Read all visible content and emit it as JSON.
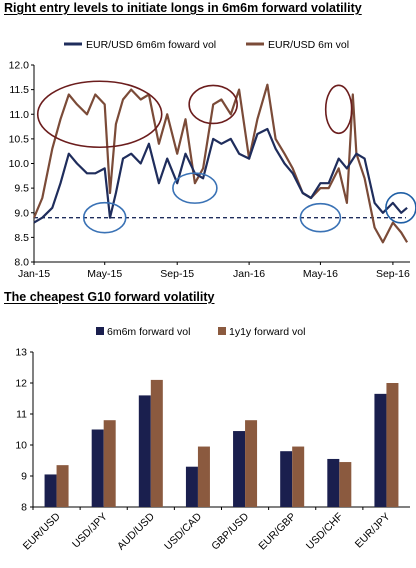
{
  "chart_data": [
    {
      "type": "line",
      "title": "Right entry levels to initiate longs in 6m6m forward volatility",
      "x_tick_labels": [
        "Jan-15",
        "May-15",
        "Sep-15",
        "Jan-16",
        "May-16",
        "Sep-16"
      ],
      "y_tick_labels": [
        "8.0",
        "8.5",
        "9.0",
        "9.5",
        "10.0",
        "10.5",
        "11.0",
        "11.5",
        "12.0"
      ],
      "ylim": [
        8.0,
        12.0
      ],
      "xlim": [
        "2015-01-01",
        "2016-09-30"
      ],
      "grid": false,
      "legend_position": "top",
      "reference_line": {
        "value": 8.9,
        "style": "dashed",
        "color": "#1f2d5c"
      },
      "series": [
        {
          "name": "EUR/USD 6m6m foward vol",
          "color": "#1f2d5c",
          "x": [
            "2015-01-01",
            "2015-01-15",
            "2015-02-01",
            "2015-02-15",
            "2015-03-01",
            "2015-03-15",
            "2015-04-01",
            "2015-04-15",
            "2015-05-01",
            "2015-05-10",
            "2015-05-20",
            "2015-06-01",
            "2015-06-15",
            "2015-07-01",
            "2015-07-15",
            "2015-08-01",
            "2015-08-15",
            "2015-09-01",
            "2015-09-15",
            "2015-10-01",
            "2015-10-15",
            "2015-11-01",
            "2015-11-15",
            "2015-12-01",
            "2015-12-15",
            "2016-01-01",
            "2016-01-15",
            "2016-02-01",
            "2016-02-15",
            "2016-03-01",
            "2016-03-15",
            "2016-04-01",
            "2016-04-15",
            "2016-05-01",
            "2016-05-15",
            "2016-06-01",
            "2016-06-15",
            "2016-07-01",
            "2016-07-15",
            "2016-08-01",
            "2016-08-15",
            "2016-09-01",
            "2016-09-15",
            "2016-09-25"
          ],
          "values": [
            8.8,
            8.9,
            9.1,
            9.6,
            10.2,
            10.0,
            9.8,
            9.8,
            9.9,
            8.9,
            9.4,
            10.1,
            10.2,
            10.0,
            10.4,
            9.6,
            10.1,
            9.6,
            10.2,
            9.8,
            9.7,
            10.5,
            10.4,
            10.5,
            10.2,
            10.1,
            10.6,
            10.7,
            10.3,
            10.0,
            9.8,
            9.4,
            9.3,
            9.6,
            9.6,
            10.1,
            9.9,
            10.2,
            10.1,
            9.2,
            9.0,
            9.2,
            9.0,
            9.1
          ]
        },
        {
          "name": "EUR/USD 6m vol",
          "color": "#7b4b38",
          "x": [
            "2015-01-01",
            "2015-01-15",
            "2015-02-01",
            "2015-02-15",
            "2015-03-01",
            "2015-03-15",
            "2015-04-01",
            "2015-04-15",
            "2015-05-01",
            "2015-05-10",
            "2015-05-20",
            "2015-06-01",
            "2015-06-15",
            "2015-07-01",
            "2015-07-15",
            "2015-08-01",
            "2015-08-15",
            "2015-09-01",
            "2015-09-15",
            "2015-10-01",
            "2015-10-15",
            "2015-11-01",
            "2015-11-15",
            "2015-12-01",
            "2015-12-15",
            "2016-01-01",
            "2016-01-15",
            "2016-02-01",
            "2016-02-15",
            "2016-03-01",
            "2016-03-15",
            "2016-04-01",
            "2016-04-15",
            "2016-05-01",
            "2016-05-15",
            "2016-06-01",
            "2016-06-15",
            "2016-06-25",
            "2016-07-01",
            "2016-07-15",
            "2016-08-01",
            "2016-08-15",
            "2016-09-01",
            "2016-09-15",
            "2016-09-25"
          ],
          "values": [
            8.9,
            9.3,
            10.3,
            10.9,
            11.4,
            11.2,
            11.0,
            11.4,
            11.2,
            9.4,
            10.8,
            11.3,
            11.5,
            11.3,
            11.4,
            10.4,
            11.0,
            10.2,
            10.9,
            9.6,
            9.9,
            11.2,
            11.3,
            11.0,
            11.5,
            10.1,
            10.9,
            11.6,
            10.5,
            10.2,
            9.9,
            9.4,
            9.3,
            9.5,
            9.5,
            9.9,
            9.2,
            11.4,
            10.2,
            9.7,
            8.7,
            8.4,
            8.8,
            8.6,
            8.4
          ]
        }
      ],
      "annotations": [
        {
          "shape": "ellipse",
          "color": "#6b1d1d",
          "near": "May-15",
          "level": 11.0
        },
        {
          "shape": "ellipse",
          "color": "#6b1d1d",
          "near": "Nov-15",
          "level": 11.2
        },
        {
          "shape": "ellipse",
          "color": "#6b1d1d",
          "near": "Jun-16",
          "level": 11.1
        },
        {
          "shape": "ellipse",
          "color": "#3a72b5",
          "near": "May-15",
          "level": 8.9
        },
        {
          "shape": "ellipse",
          "color": "#3a72b5",
          "near": "Oct-15",
          "level": 9.5
        },
        {
          "shape": "ellipse",
          "color": "#3a72b5",
          "near": "May-16",
          "level": 8.9
        },
        {
          "shape": "ellipse",
          "color": "#1f5fa5",
          "near": "Sep-16",
          "level": 9.1
        }
      ]
    },
    {
      "type": "bar",
      "title": "The cheapest G10 forward volatility",
      "categories": [
        "EUR/USD",
        "USD/JPY",
        "AUD/USD",
        "USD/CAD",
        "GBP/USD",
        "EUR/GBP",
        "USD/CHF",
        "EUR/JPY"
      ],
      "y_tick_labels": [
        "8",
        "9",
        "10",
        "11",
        "12",
        "13"
      ],
      "ylim": [
        8,
        13
      ],
      "grid": false,
      "legend_position": "top",
      "series": [
        {
          "name": "6m6m forward vol",
          "color": "#1a1f4e",
          "values": [
            9.05,
            10.5,
            11.6,
            9.3,
            10.45,
            9.8,
            9.55,
            11.65
          ]
        },
        {
          "name": "1y1y forward vol",
          "color": "#8b5a3f",
          "values": [
            9.35,
            10.8,
            12.1,
            9.95,
            10.8,
            9.95,
            9.45,
            12.0
          ]
        }
      ]
    }
  ]
}
